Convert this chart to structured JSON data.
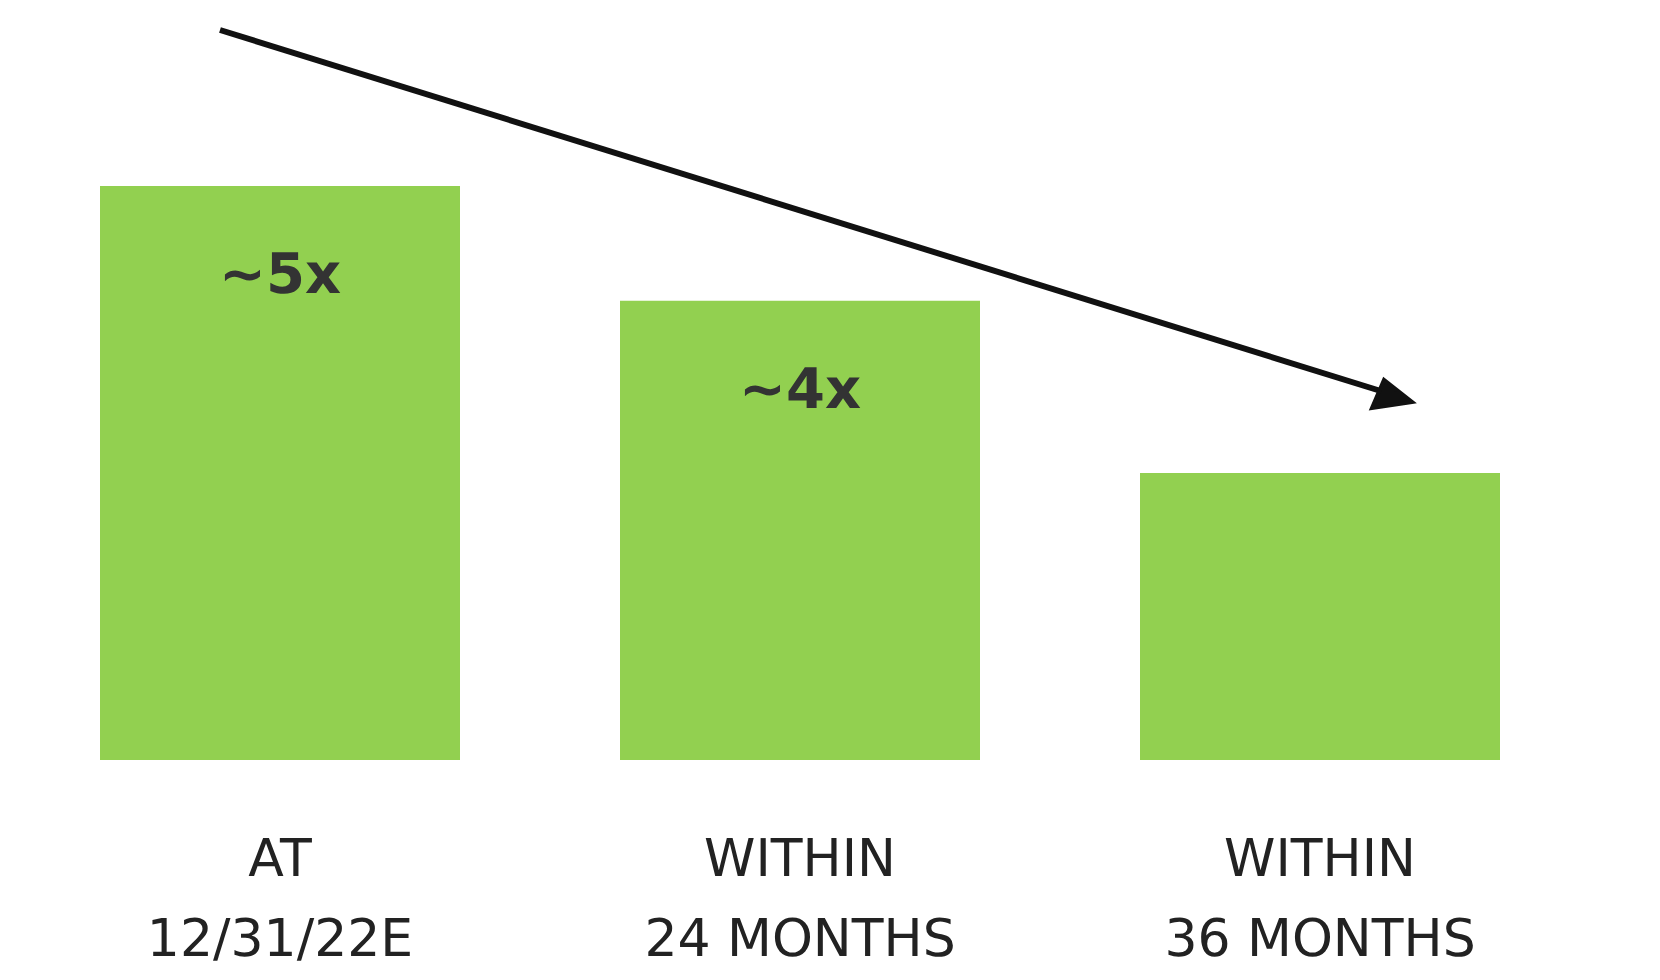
{
  "chart_data": {
    "type": "bar",
    "tick_labels": false,
    "ylim": [
      0,
      5
    ],
    "categories": [
      "AT\n12/31/22E",
      "WITHIN\n24 MONTHS",
      "WITHIN\n36 MONTHS"
    ],
    "values": [
      5,
      4,
      2.5
    ],
    "value_labels": [
      "~5x",
      "~4x",
      null
    ],
    "color": "#92d050"
  }
}
